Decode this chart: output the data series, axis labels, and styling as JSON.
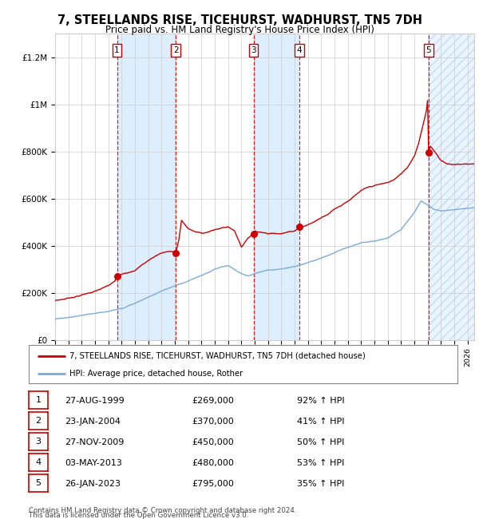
{
  "title": "7, STEELLANDS RISE, TICEHURST, WADHURST, TN5 7DH",
  "subtitle": "Price paid vs. HM Land Registry's House Price Index (HPI)",
  "transactions": [
    {
      "num": 1,
      "date": "27-AUG-1999",
      "year": 1999.65,
      "price": 269000,
      "pct": "92%"
    },
    {
      "num": 2,
      "date": "23-JAN-2004",
      "year": 2004.07,
      "price": 370000,
      "pct": "41%"
    },
    {
      "num": 3,
      "date": "27-NOV-2009",
      "year": 2009.91,
      "price": 450000,
      "pct": "50%"
    },
    {
      "num": 4,
      "date": "03-MAY-2013",
      "year": 2013.34,
      "price": 480000,
      "pct": "53%"
    },
    {
      "num": 5,
      "date": "26-JAN-2023",
      "year": 2023.07,
      "price": 795000,
      "pct": "35%"
    }
  ],
  "legend_line1": "7, STEELLANDS RISE, TICEHURST, WADHURST, TN5 7DH (detached house)",
  "legend_line2": "HPI: Average price, detached house, Rother",
  "footer1": "Contains HM Land Registry data © Crown copyright and database right 2024.",
  "footer2": "This data is licensed under the Open Government Licence v3.0.",
  "hpi_color": "#7aaadd",
  "price_color": "#cc0000",
  "shade_color": "#ddeeff",
  "ylim": [
    0,
    1300000
  ],
  "xlim_start": 1995.0,
  "xlim_end": 2026.5,
  "background_color": "#ffffff",
  "grid_color": "#cccccc",
  "hpi_control": [
    [
      1995.0,
      88000
    ],
    [
      1996.0,
      96000
    ],
    [
      1997.0,
      103000
    ],
    [
      1998.0,
      111000
    ],
    [
      1999.0,
      118000
    ],
    [
      2000.0,
      132000
    ],
    [
      2001.0,
      152000
    ],
    [
      2002.0,
      178000
    ],
    [
      2003.0,
      205000
    ],
    [
      2004.0,
      228000
    ],
    [
      2005.0,
      250000
    ],
    [
      2006.0,
      272000
    ],
    [
      2007.0,
      300000
    ],
    [
      2008.0,
      315000
    ],
    [
      2009.0,
      280000
    ],
    [
      2009.5,
      270000
    ],
    [
      2010.0,
      280000
    ],
    [
      2011.0,
      293000
    ],
    [
      2012.0,
      298000
    ],
    [
      2013.0,
      308000
    ],
    [
      2014.0,
      325000
    ],
    [
      2015.0,
      345000
    ],
    [
      2016.0,
      368000
    ],
    [
      2017.0,
      390000
    ],
    [
      2018.0,
      408000
    ],
    [
      2019.0,
      420000
    ],
    [
      2020.0,
      432000
    ],
    [
      2021.0,
      468000
    ],
    [
      2022.0,
      540000
    ],
    [
      2022.5,
      590000
    ],
    [
      2023.0,
      575000
    ],
    [
      2023.5,
      555000
    ],
    [
      2024.0,
      548000
    ],
    [
      2025.0,
      555000
    ],
    [
      2026.5,
      562000
    ]
  ],
  "prop_control": [
    [
      1995.0,
      168000
    ],
    [
      1995.5,
      172000
    ],
    [
      1996.0,
      178000
    ],
    [
      1996.5,
      185000
    ],
    [
      1997.0,
      192000
    ],
    [
      1997.5,
      200000
    ],
    [
      1998.0,
      208000
    ],
    [
      1998.5,
      218000
    ],
    [
      1999.0,
      228000
    ],
    [
      1999.5,
      245000
    ],
    [
      1999.65,
      269000
    ],
    [
      2000.0,
      272000
    ],
    [
      2000.5,
      282000
    ],
    [
      2001.0,
      295000
    ],
    [
      2001.5,
      315000
    ],
    [
      2002.0,
      335000
    ],
    [
      2002.5,
      352000
    ],
    [
      2003.0,
      368000
    ],
    [
      2003.5,
      375000
    ],
    [
      2004.0,
      372000
    ],
    [
      2004.07,
      370000
    ],
    [
      2004.3,
      420000
    ],
    [
      2004.5,
      505000
    ],
    [
      2004.7,
      490000
    ],
    [
      2005.0,
      470000
    ],
    [
      2005.5,
      455000
    ],
    [
      2006.0,
      448000
    ],
    [
      2006.5,
      455000
    ],
    [
      2007.0,
      462000
    ],
    [
      2007.5,
      470000
    ],
    [
      2008.0,
      475000
    ],
    [
      2008.5,
      460000
    ],
    [
      2009.0,
      390000
    ],
    [
      2009.5,
      430000
    ],
    [
      2009.91,
      450000
    ],
    [
      2010.0,
      460000
    ],
    [
      2010.5,
      458000
    ],
    [
      2011.0,
      450000
    ],
    [
      2011.5,
      452000
    ],
    [
      2012.0,
      455000
    ],
    [
      2012.5,
      460000
    ],
    [
      2013.0,
      465000
    ],
    [
      2013.34,
      480000
    ],
    [
      2013.5,
      482000
    ],
    [
      2014.0,
      492000
    ],
    [
      2014.5,
      505000
    ],
    [
      2015.0,
      522000
    ],
    [
      2015.5,
      540000
    ],
    [
      2016.0,
      562000
    ],
    [
      2016.5,
      578000
    ],
    [
      2017.0,
      598000
    ],
    [
      2017.5,
      618000
    ],
    [
      2018.0,
      638000
    ],
    [
      2018.5,
      648000
    ],
    [
      2019.0,
      655000
    ],
    [
      2019.5,
      660000
    ],
    [
      2020.0,
      665000
    ],
    [
      2020.5,
      678000
    ],
    [
      2021.0,
      700000
    ],
    [
      2021.5,
      730000
    ],
    [
      2022.0,
      780000
    ],
    [
      2022.3,
      830000
    ],
    [
      2022.6,
      900000
    ],
    [
      2022.9,
      970000
    ],
    [
      2023.0,
      1020000
    ],
    [
      2023.07,
      795000
    ],
    [
      2023.2,
      820000
    ],
    [
      2023.5,
      800000
    ],
    [
      2023.8,
      778000
    ],
    [
      2024.0,
      762000
    ],
    [
      2024.5,
      748000
    ],
    [
      2025.0,
      745000
    ],
    [
      2026.5,
      748000
    ]
  ]
}
